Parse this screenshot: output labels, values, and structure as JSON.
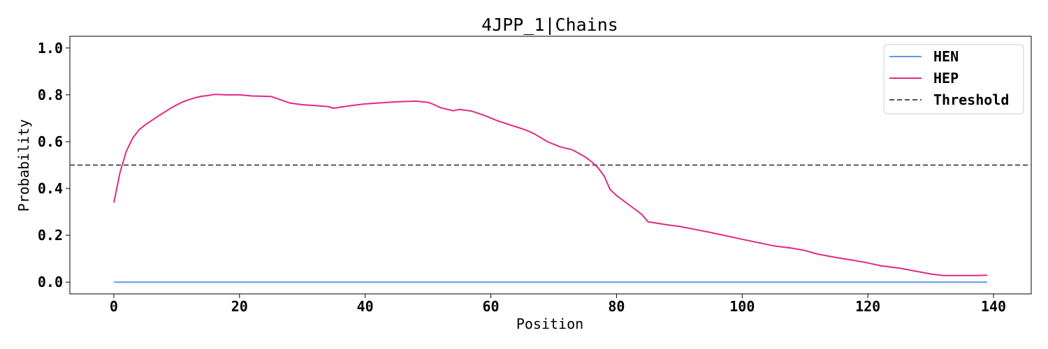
{
  "chart_data": {
    "type": "line",
    "title": "4JPP_1|Chains",
    "xlabel": "Position",
    "ylabel": "Probability",
    "xlim": [
      -7,
      146
    ],
    "ylim": [
      -0.05,
      1.05
    ],
    "xticks": [
      0,
      20,
      40,
      60,
      80,
      100,
      120,
      140
    ],
    "yticks": [
      0.0,
      0.2,
      0.4,
      0.6,
      0.8,
      1.0
    ],
    "grid": false,
    "legend_position": "top-right",
    "threshold": {
      "name": "Threshold",
      "value": 0.5,
      "color": "#555555",
      "style": "dashed"
    },
    "series": [
      {
        "name": "HEN",
        "color": "#6495ED",
        "points": [
          [
            0,
            0.0
          ],
          [
            139,
            0.0
          ]
        ]
      },
      {
        "name": "HEP",
        "color": "#DE2A84",
        "points": [
          [
            0,
            0.34
          ],
          [
            1,
            0.47
          ],
          [
            2,
            0.56
          ],
          [
            3,
            0.615
          ],
          [
            4,
            0.65
          ],
          [
            5,
            0.672
          ],
          [
            6,
            0.69
          ],
          [
            7,
            0.708
          ],
          [
            8,
            0.725
          ],
          [
            9,
            0.742
          ],
          [
            10,
            0.757
          ],
          [
            11,
            0.77
          ],
          [
            12,
            0.78
          ],
          [
            13,
            0.788
          ],
          [
            14,
            0.794
          ],
          [
            15,
            0.797
          ],
          [
            16,
            0.802
          ],
          [
            17,
            0.801
          ],
          [
            18,
            0.8
          ],
          [
            20,
            0.8
          ],
          [
            22,
            0.795
          ],
          [
            25,
            0.793
          ],
          [
            28,
            0.765
          ],
          [
            30,
            0.758
          ],
          [
            32,
            0.754
          ],
          [
            34,
            0.75
          ],
          [
            35,
            0.743
          ],
          [
            36,
            0.747
          ],
          [
            38,
            0.755
          ],
          [
            40,
            0.761
          ],
          [
            42,
            0.765
          ],
          [
            45,
            0.77
          ],
          [
            48,
            0.773
          ],
          [
            50,
            0.768
          ],
          [
            51,
            0.758
          ],
          [
            52,
            0.745
          ],
          [
            54,
            0.732
          ],
          [
            55,
            0.738
          ],
          [
            57,
            0.73
          ],
          [
            59,
            0.712
          ],
          [
            61,
            0.69
          ],
          [
            63,
            0.672
          ],
          [
            65,
            0.655
          ],
          [
            66,
            0.645
          ],
          [
            67,
            0.632
          ],
          [
            69,
            0.6
          ],
          [
            71,
            0.578
          ],
          [
            73,
            0.565
          ],
          [
            75,
            0.535
          ],
          [
            76,
            0.515
          ],
          [
            77,
            0.49
          ],
          [
            78,
            0.455
          ],
          [
            79,
            0.395
          ],
          [
            80,
            0.37
          ],
          [
            82,
            0.33
          ],
          [
            84,
            0.29
          ],
          [
            85,
            0.258
          ],
          [
            88,
            0.245
          ],
          [
            90,
            0.238
          ],
          [
            95,
            0.212
          ],
          [
            100,
            0.183
          ],
          [
            105,
            0.155
          ],
          [
            108,
            0.145
          ],
          [
            110,
            0.135
          ],
          [
            112,
            0.12
          ],
          [
            115,
            0.105
          ],
          [
            118,
            0.092
          ],
          [
            120,
            0.082
          ],
          [
            122,
            0.07
          ],
          [
            125,
            0.06
          ],
          [
            127,
            0.05
          ],
          [
            130,
            0.035
          ],
          [
            132,
            0.028
          ],
          [
            135,
            0.028
          ],
          [
            137,
            0.028
          ],
          [
            139,
            0.03
          ]
        ]
      }
    ]
  }
}
